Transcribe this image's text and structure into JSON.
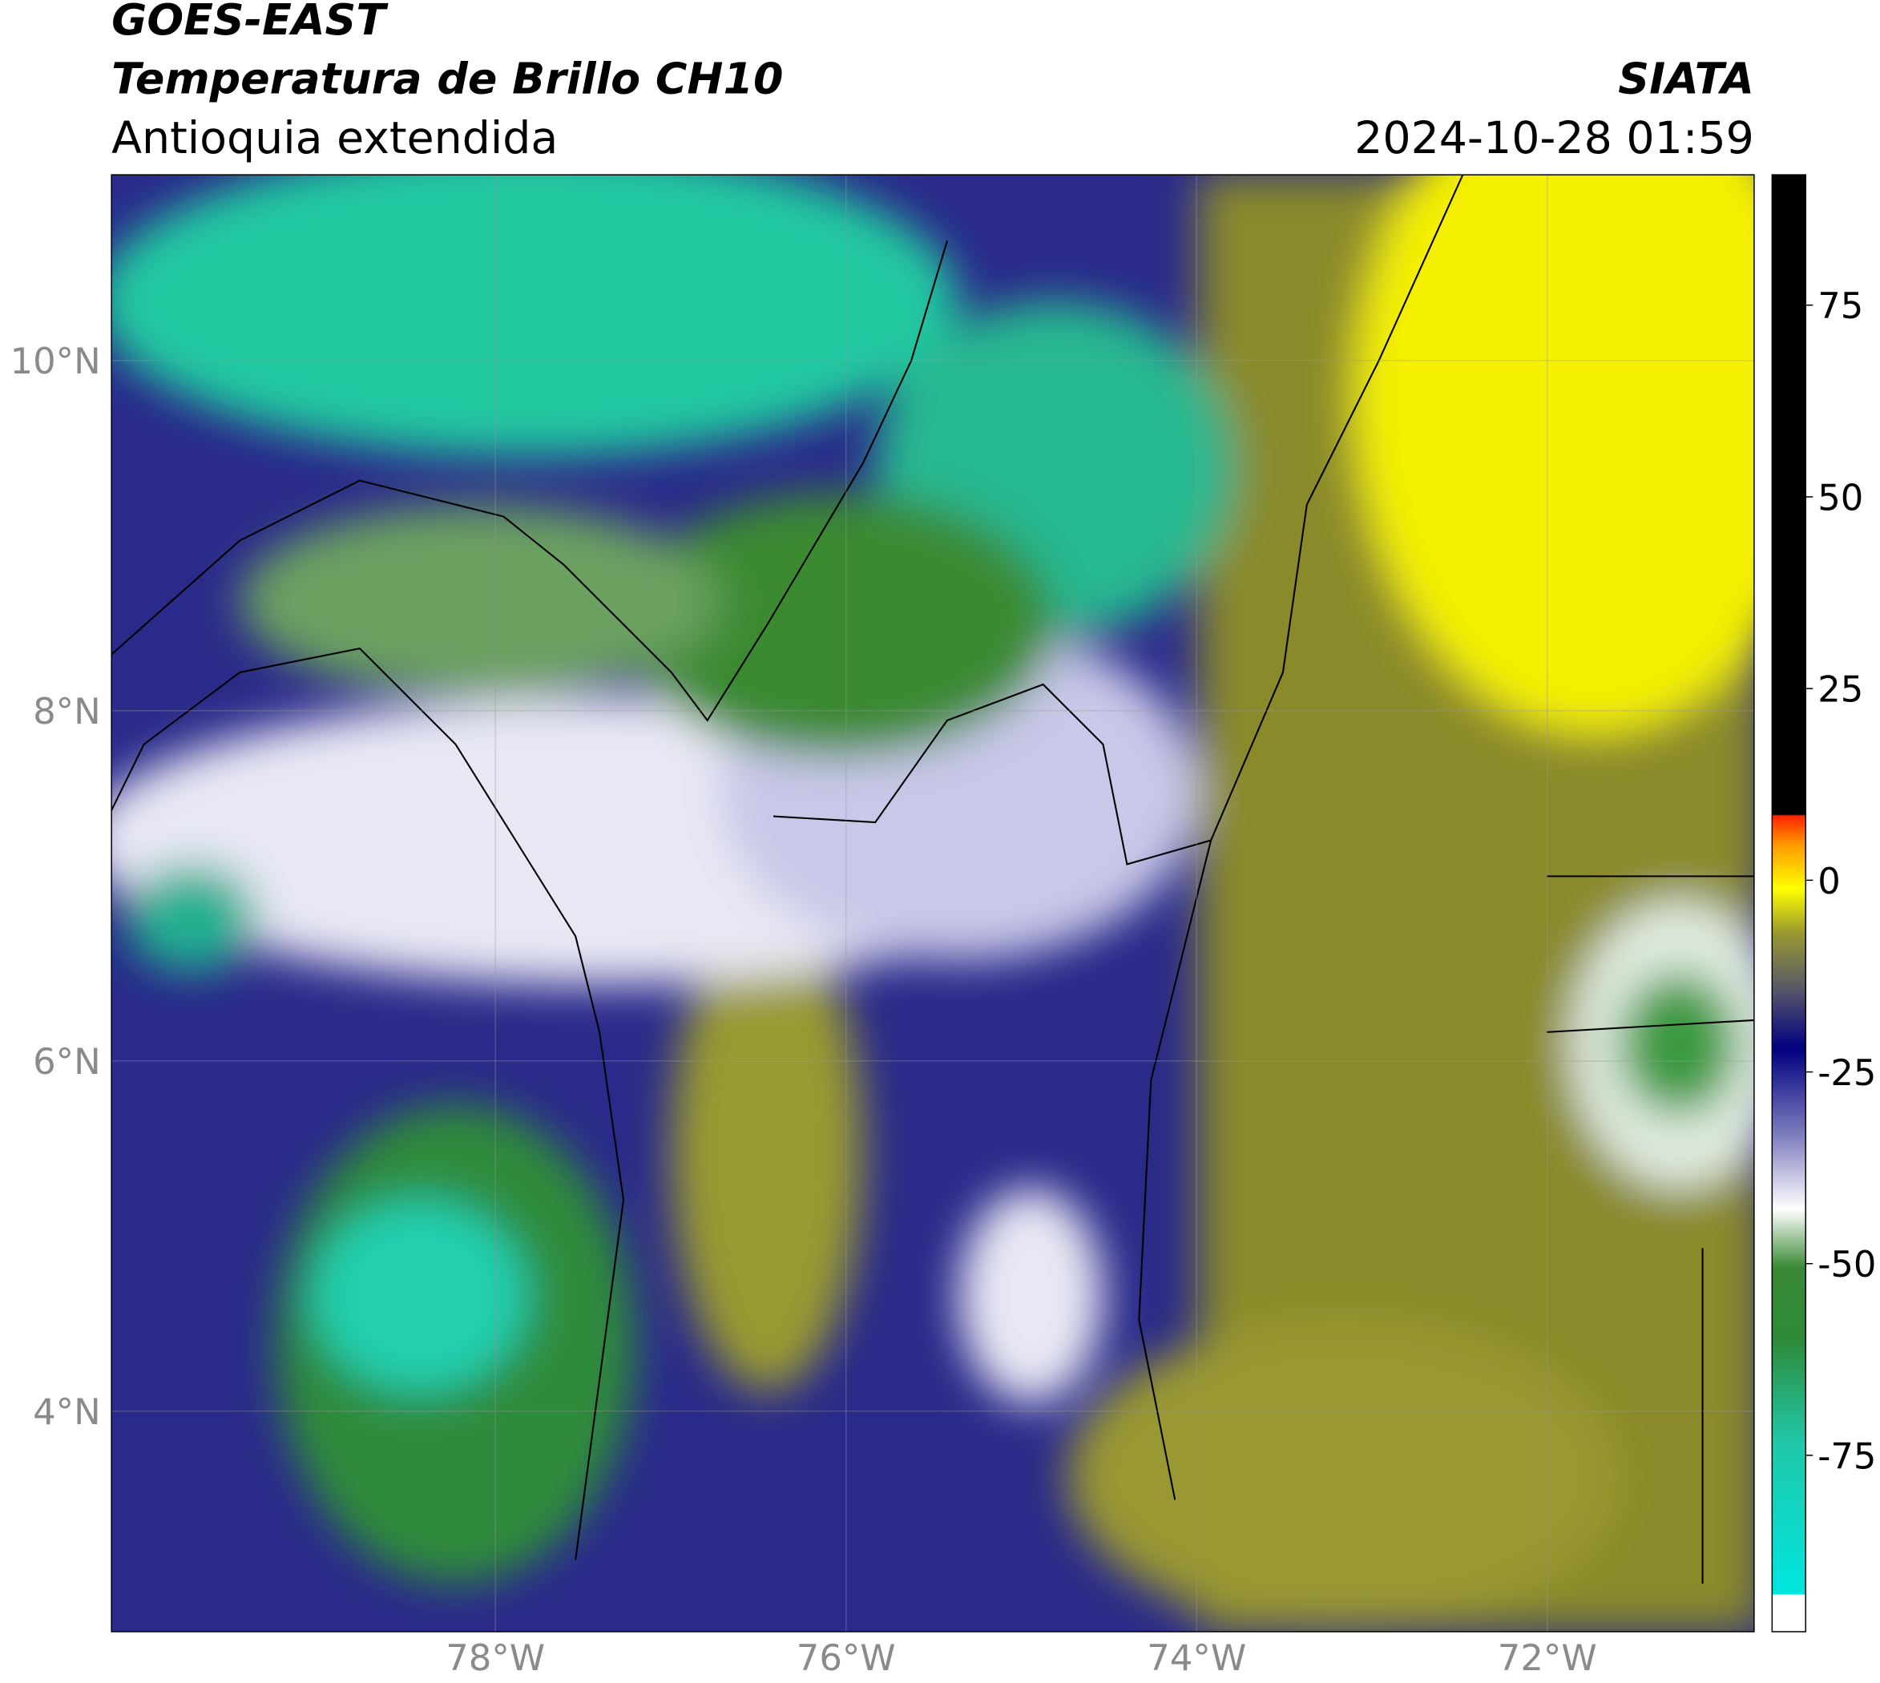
{
  "header": {
    "title": "GOES-EAST",
    "subtitle": "Temperatura de Brillo CH10",
    "region": "Antioquia extendida",
    "source": "SIATA",
    "timestamp": "2024-10-28 01:59"
  },
  "map": {
    "xlim": [
      -80.19,
      -70.82
    ],
    "ylim": [
      2.74,
      11.06
    ],
    "xticks": [
      {
        "value": -78,
        "label": "78°W"
      },
      {
        "value": -76,
        "label": "76°W"
      },
      {
        "value": -74,
        "label": "74°W"
      },
      {
        "value": -72,
        "label": "72°W"
      }
    ],
    "yticks": [
      {
        "value": 4,
        "label": "4°N"
      },
      {
        "value": 6,
        "label": "6°N"
      },
      {
        "value": 8,
        "label": "8°N"
      },
      {
        "value": 10,
        "label": "10°N"
      }
    ]
  },
  "colorbar": {
    "lim": [
      -98,
      92
    ],
    "ticks": [
      -75,
      -50,
      -25,
      0,
      25,
      50,
      75
    ]
  }
}
